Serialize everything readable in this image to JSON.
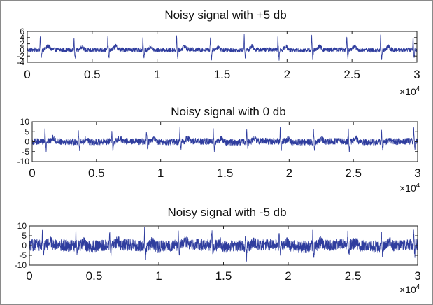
{
  "colors": {
    "signal": "#2f3d9e",
    "axes": "#222222",
    "background": "#ffffff",
    "border": "#8a8a8a"
  },
  "chart_data": [
    {
      "type": "line",
      "title": "Noisy signal with +5 db",
      "xlabel": "",
      "ylabel": "",
      "xlim": [
        0,
        30000
      ],
      "ylim": [
        -4,
        6
      ],
      "x_ticks": [
        0,
        5000,
        10000,
        15000,
        20000,
        25000,
        30000
      ],
      "x_tick_labels": [
        "0",
        "0.5",
        "1",
        "1.5",
        "2",
        "2.5",
        "3"
      ],
      "x_multiplier": "×10",
      "x_multiplier_exp": "4",
      "y_ticks": [
        -4,
        -2,
        0,
        2,
        4,
        6
      ],
      "y_tick_labels": [
        "-4",
        "-2",
        "0",
        "2",
        "4",
        "6"
      ],
      "noise_amplitude": 0.7,
      "peak_positions": [
        1000,
        3600,
        6200,
        8900,
        11500,
        14100,
        16700,
        19300,
        21900,
        24600,
        27200,
        29700
      ],
      "peak_height": 4.5,
      "trough_depth": -2.8
    },
    {
      "type": "line",
      "title": "Noisy signal with 0 db",
      "xlabel": "",
      "ylabel": "",
      "xlim": [
        0,
        30000
      ],
      "ylim": [
        -10,
        10
      ],
      "x_ticks": [
        0,
        5000,
        10000,
        15000,
        20000,
        25000,
        30000
      ],
      "x_tick_labels": [
        "0",
        "0.5",
        "1",
        "1.5",
        "2",
        "2.5",
        "3"
      ],
      "x_multiplier": "×10",
      "x_multiplier_exp": "4",
      "y_ticks": [
        -10,
        -5,
        0,
        5,
        10
      ],
      "y_tick_labels": [
        "-10",
        "-5",
        "0",
        "5",
        "10"
      ],
      "noise_amplitude": 1.6,
      "peak_positions": [
        1000,
        3600,
        6200,
        8900,
        11500,
        14100,
        16700,
        19300,
        21900,
        24600,
        27200,
        29700
      ],
      "peak_height": 6,
      "trough_depth": -4
    },
    {
      "type": "line",
      "title": "Noisy signal with -5 db",
      "xlabel": "",
      "ylabel": "",
      "xlim": [
        0,
        30000
      ],
      "ylim": [
        -10,
        10
      ],
      "x_ticks": [
        0,
        5000,
        10000,
        15000,
        20000,
        25000,
        30000
      ],
      "x_tick_labels": [
        "0",
        "0.5",
        "1",
        "1.5",
        "2",
        "2.5",
        "3"
      ],
      "x_multiplier": "×10",
      "x_multiplier_exp": "4",
      "y_ticks": [
        -10,
        -5,
        0,
        5,
        10
      ],
      "y_tick_labels": [
        "-10",
        "-5",
        "0",
        "5",
        "10"
      ],
      "noise_amplitude": 3,
      "peak_positions": [
        1000,
        3600,
        6200,
        8900,
        11500,
        14100,
        16700,
        19300,
        21900,
        24600,
        27200,
        29700
      ],
      "peak_height": 7,
      "trough_depth": -5
    }
  ]
}
